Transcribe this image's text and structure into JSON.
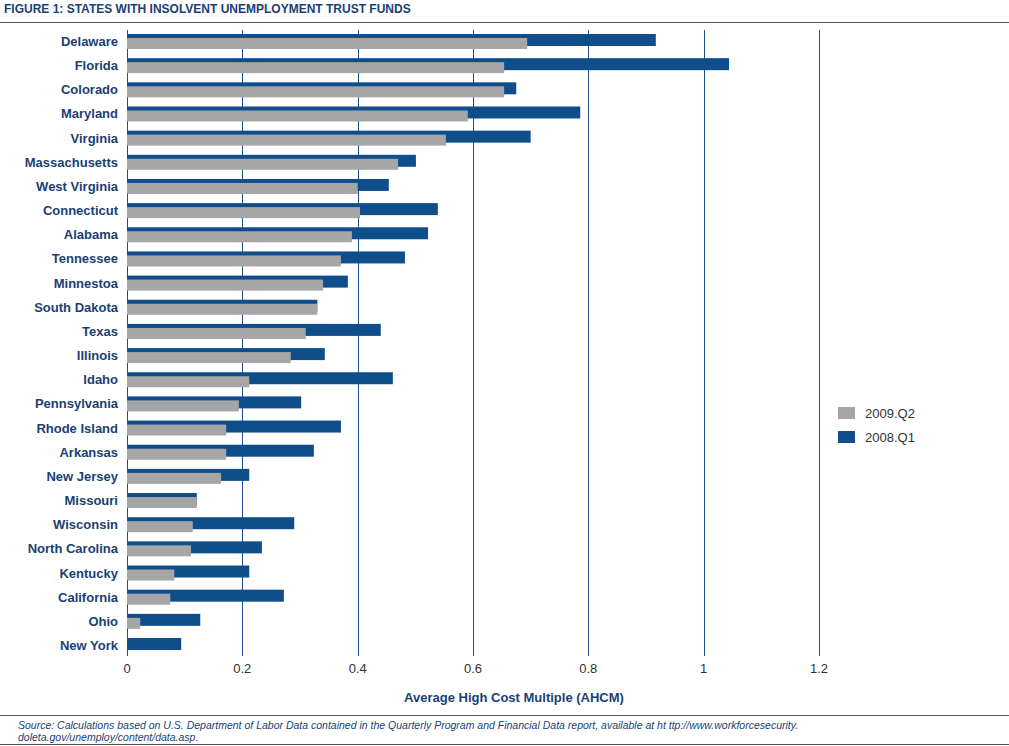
{
  "chart_data": {
    "type": "bar",
    "orientation": "horizontal",
    "title": "FIGURE 1: STATES WITH INSOLVENT UNEMPLOYMENT TRUST FUNDS",
    "xlabel": "Average High Cost Multiple (AHCM)",
    "annotations": [
      "Source: Calculations based on U.S. Department of Labor Data contained in the Quarterly Program and Financial Data report, available at ht ttp://www.workforcesecurity.",
      "doleta.gov/unemploy/content/data.asp."
    ],
    "categories": [
      "Delaware",
      "Florida",
      "Colorado",
      "Maryland",
      "Virginia",
      "Massachusetts",
      "West Virginia",
      "Connecticut",
      "Alabama",
      "Tennessee",
      "Minnestoa",
      "South Dakota",
      "Texas",
      "Illinois",
      "Idaho",
      "Pennsylvania",
      "Rhode Island",
      "Arkansas",
      "New Jersey",
      "Missouri",
      "Wisconsin",
      "North Carolina",
      "Kentucky",
      "California",
      "Ohio",
      "New York"
    ],
    "series": [
      {
        "name": "2009.Q2",
        "color": "#a6a6a6",
        "values": [
          0.694,
          0.654,
          0.654,
          0.591,
          0.553,
          0.47,
          0.4,
          0.404,
          0.39,
          0.371,
          0.34,
          0.33,
          0.31,
          0.284,
          0.212,
          0.194,
          0.172,
          0.172,
          0.163,
          0.121,
          0.114,
          0.111,
          0.082,
          0.075,
          0.023,
          0
        ]
      },
      {
        "name": "2008.Q1",
        "color": "#104e8b",
        "values": [
          0.917,
          1.044,
          0.675,
          0.786,
          0.7,
          0.501,
          0.454,
          0.539,
          0.522,
          0.482,
          0.383,
          0.33,
          0.44,
          0.343,
          0.461,
          0.302,
          0.371,
          0.324,
          0.212,
          0.121,
          0.29,
          0.234,
          0.212,
          0.272,
          0.127,
          0.094
        ]
      }
    ],
    "xlim": [
      0,
      1.2
    ],
    "xticks": [
      0,
      0.2,
      0.4,
      0.6,
      0.8,
      1,
      1.2
    ],
    "grid": true,
    "legend": "right"
  }
}
